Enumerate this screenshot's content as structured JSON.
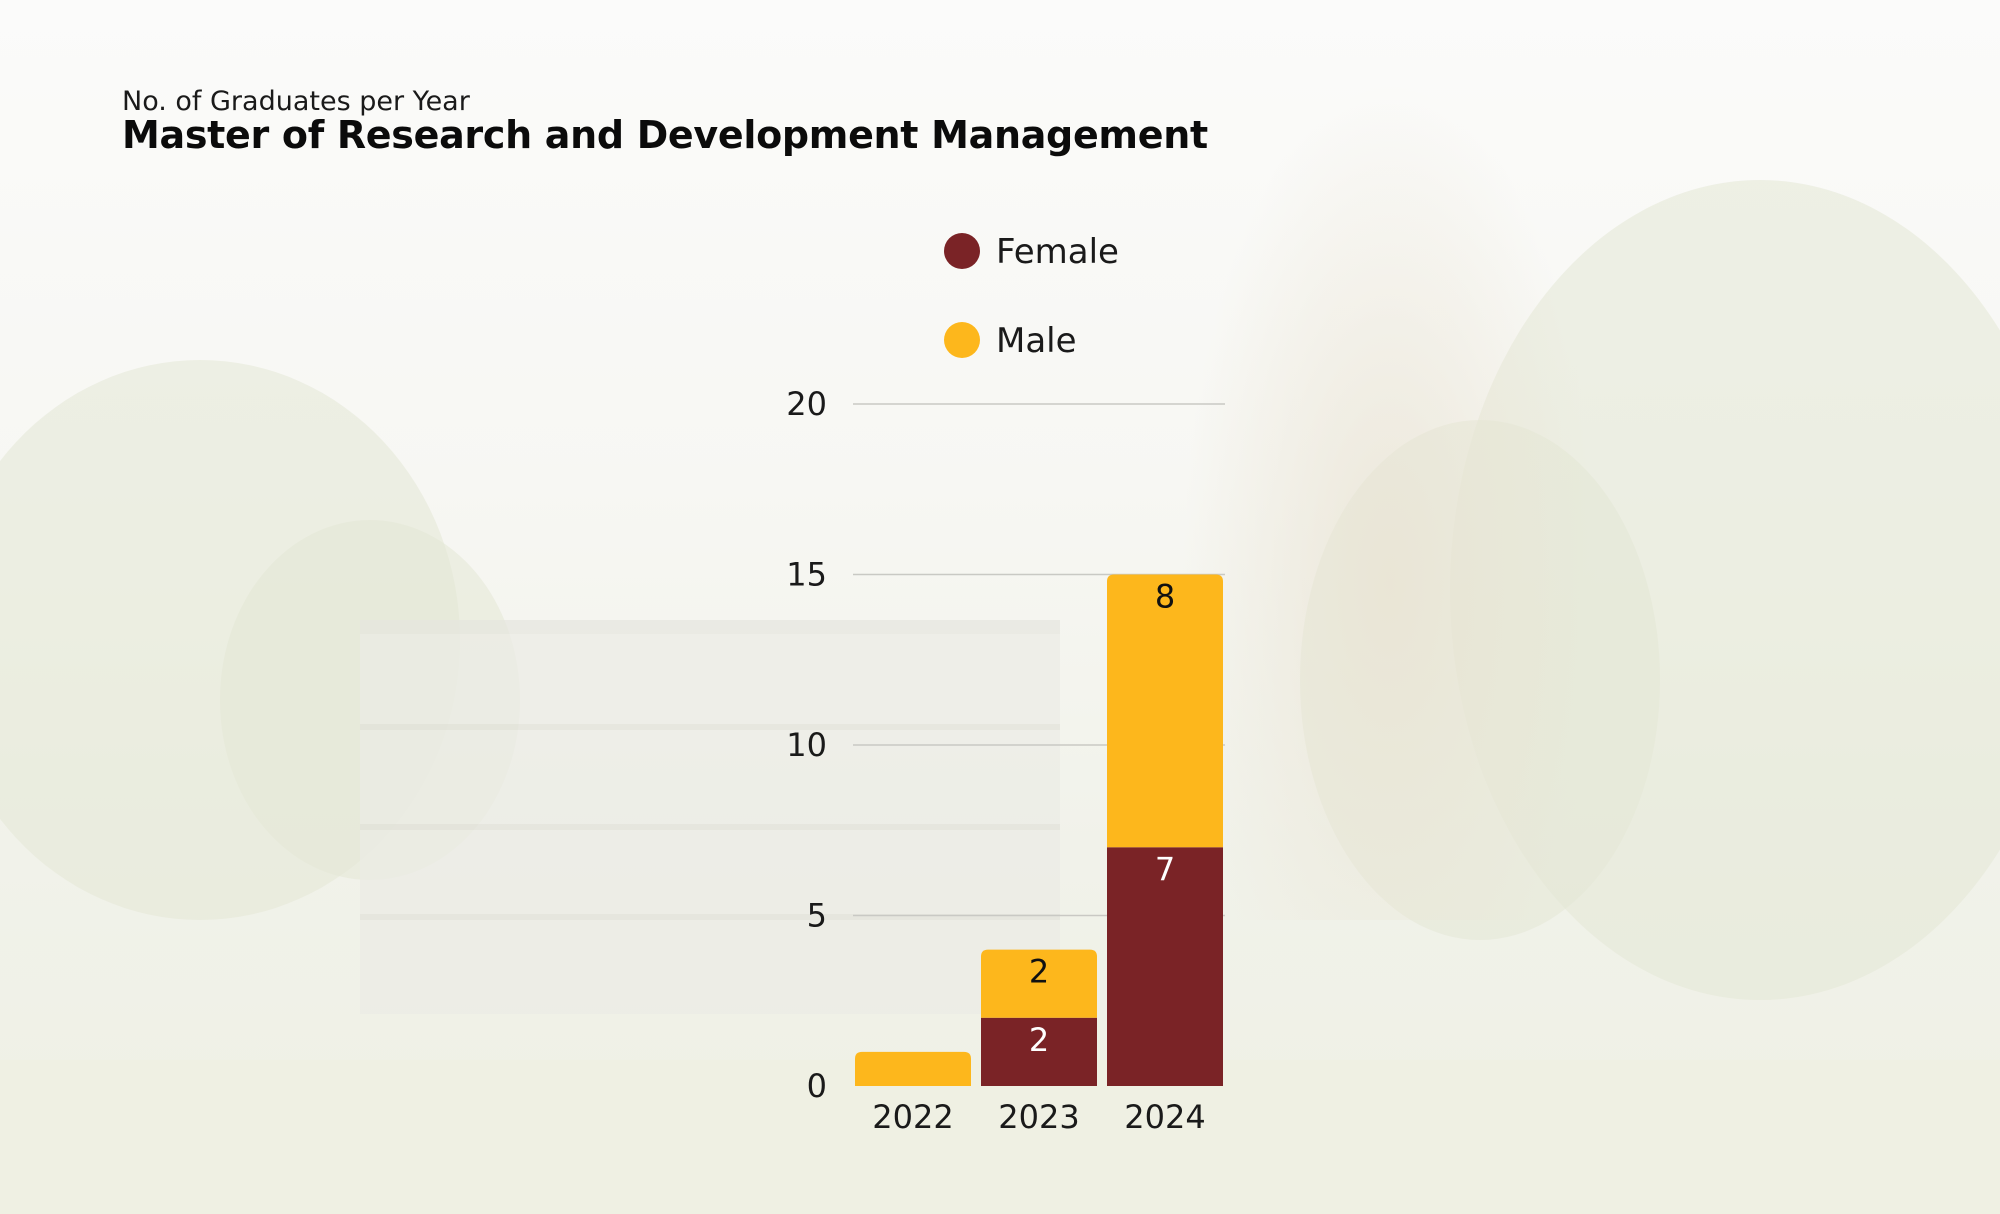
{
  "header": {
    "subtitle": "No. of Graduates per Year",
    "title": "Master of Research and Development Management"
  },
  "colors": {
    "female": "#7a2326",
    "male": "#fdb71c",
    "grid": "#c9c9c4",
    "female_label": "#ffffff",
    "male_label": "#111111"
  },
  "chart_data": {
    "type": "bar",
    "stacked": true,
    "categories": [
      "2022",
      "2023",
      "2024"
    ],
    "series": [
      {
        "name": "Female",
        "values": [
          0,
          2,
          7
        ],
        "labels": [
          "",
          "2",
          "7"
        ]
      },
      {
        "name": "Male",
        "values": [
          1,
          2,
          8
        ],
        "labels": [
          "",
          "2",
          "8"
        ]
      }
    ],
    "ylim": [
      0,
      20
    ],
    "yticks": [
      0,
      5,
      10,
      15,
      20
    ],
    "grid": true,
    "legend_position": "top"
  }
}
